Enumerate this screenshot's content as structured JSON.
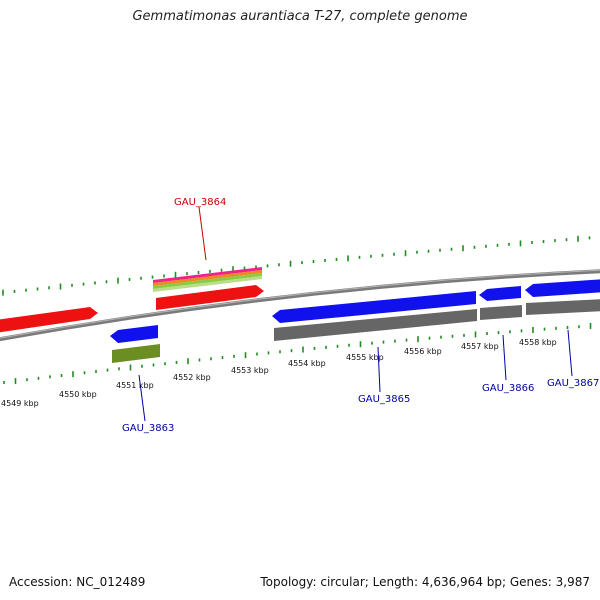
{
  "title": "Gemmatimonas aurantiaca T-27, complete genome",
  "footer": {
    "accession": "Accession: NC_012489",
    "summary": "Topology: circular; Length: 4,636,964 bp; Genes: 3,987"
  },
  "colors": {
    "forward_cds": "#ee1111",
    "reverse_cds": "#1111ee",
    "rna": "#6b8e23",
    "forward_label": "#cc0000",
    "reverse_label": "#0000aa",
    "backbone": "#808080",
    "tick": "#228b22"
  },
  "ticks": [
    "4549 kbp",
    "4550 kbp",
    "4551 kbp",
    "4552 kbp",
    "4553 kbp",
    "4554 kbp",
    "4555 kbp",
    "4556 kbp",
    "4557 kbp",
    "4558 kbp"
  ],
  "genes": [
    {
      "id": "GAU_3864",
      "label": "GAU_3864",
      "strand": "forward"
    },
    {
      "id": "GAU_3863",
      "label": "GAU_3863",
      "strand": "reverse"
    },
    {
      "id": "GAU_3865",
      "label": "GAU_3865",
      "strand": "reverse"
    },
    {
      "id": "GAU_3866",
      "label": "GAU_3866",
      "strand": "reverse"
    },
    {
      "id": "GAU_3867",
      "label": "GAU_3867",
      "strand": "reverse"
    }
  ]
}
